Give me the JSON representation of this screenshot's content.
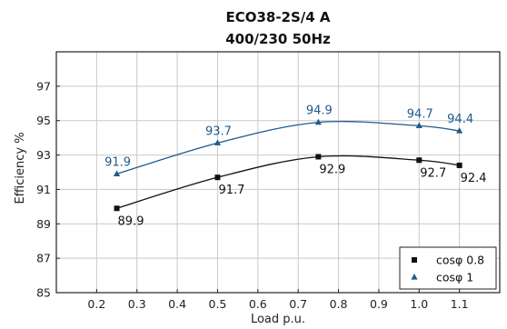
{
  "chart_data": {
    "type": "line",
    "title": "ECO38-2S/4 A",
    "subtitle": "400/230 50Hz",
    "xlabel": "Load p.u.",
    "ylabel": "Efficiency %",
    "xlim": [
      0.1,
      1.2
    ],
    "ylim": [
      85,
      99
    ],
    "xticks": [
      "0.2",
      "0.3",
      "0.4",
      "0.5",
      "0.6",
      "0.7",
      "0.8",
      "0.9",
      "1.0",
      "1.1"
    ],
    "yticks": [
      "85",
      "87",
      "89",
      "91",
      "93",
      "95",
      "97"
    ],
    "grid": true,
    "legend_position": "bottom-right",
    "series": [
      {
        "name": "cosφ 0.8",
        "color": "#111111",
        "marker": "square",
        "x": [
          0.25,
          0.5,
          0.75,
          1.0,
          1.1
        ],
        "values": [
          89.9,
          91.7,
          92.9,
          92.7,
          92.4
        ],
        "labels": [
          "89.9",
          "91.7",
          "92.9",
          "92.7",
          "92.4"
        ]
      },
      {
        "name": "cosφ 1",
        "color": "#1f5a8c",
        "marker": "triangle",
        "x": [
          0.25,
          0.5,
          0.75,
          1.0,
          1.1
        ],
        "values": [
          91.9,
          93.7,
          94.9,
          94.7,
          94.4
        ],
        "labels": [
          "91.9",
          "93.7",
          "94.9",
          "94.7",
          "94.4"
        ]
      }
    ]
  }
}
